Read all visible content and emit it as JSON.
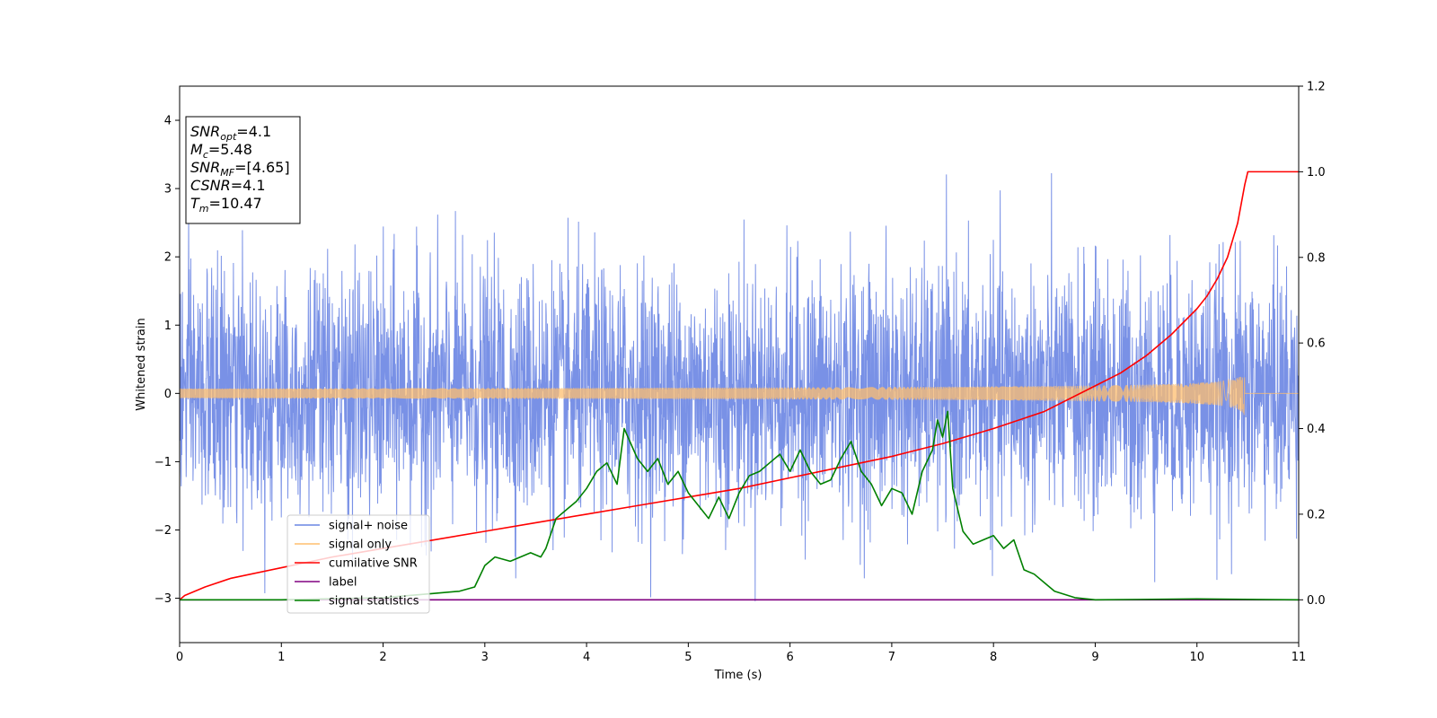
{
  "chart_data": {
    "type": "line",
    "xlabel": "Time (s)",
    "ylabel": "Whitened strain",
    "xlim": [
      0,
      11
    ],
    "ylim_left": [
      -3.65,
      4.5
    ],
    "ylim_right": [
      -0.1,
      1.2
    ],
    "x_ticks": [
      0,
      1,
      2,
      3,
      4,
      5,
      6,
      7,
      8,
      9,
      10,
      11
    ],
    "x_tick_labels": [
      "0",
      "1",
      "2",
      "3",
      "4",
      "5",
      "6",
      "7",
      "8",
      "9",
      "10",
      "11"
    ],
    "y_left_ticks": [
      -3,
      -2,
      -1,
      0,
      1,
      2,
      3,
      4
    ],
    "y_left_tick_labels": [
      "−3",
      "−2",
      "−1",
      "0",
      "1",
      "2",
      "3",
      "4"
    ],
    "y_right_ticks": [
      0.0,
      0.2,
      0.4,
      0.6,
      0.8,
      1.0,
      1.2
    ],
    "y_right_tick_labels": [
      "0.0",
      "0.2",
      "0.4",
      "0.6",
      "0.8",
      "1.0",
      "1.2"
    ],
    "info_box": [
      {
        "base": "SNR",
        "sub": "opt",
        "value": "=4.1"
      },
      {
        "base": "M",
        "sub": "c",
        "value": "=5.48"
      },
      {
        "base": "SNR",
        "sub": "MF",
        "value": "=[4.65]"
      },
      {
        "base": "CSNR",
        "sub": "",
        "value": "=4.1"
      },
      {
        "base": "T",
        "sub": "m",
        "value": "=10.47"
      }
    ],
    "legend": {
      "placement": "lower-left",
      "entries": [
        "signal+ noise",
        "signal only",
        "cumilative SNR",
        "label",
        "signal statistics"
      ]
    },
    "series": [
      {
        "name": "signal+ noise",
        "axis": "left",
        "color": "#6a85e3",
        "kind": "noise",
        "description_values": {
          "mean": 0.0,
          "std": 0.9,
          "x_range": [
            0,
            11
          ]
        }
      },
      {
        "name": "signal only",
        "axis": "left",
        "color": "#ffbf6f",
        "kind": "chirp",
        "merger_time": 10.47,
        "peak_amplitude": 0.38
      },
      {
        "name": "cumilative SNR",
        "axis": "right",
        "color": "#ff0000",
        "x": [
          0.0,
          0.05,
          0.25,
          0.5,
          1.0,
          1.5,
          2.0,
          2.5,
          3.0,
          3.5,
          4.0,
          4.5,
          5.0,
          5.5,
          6.0,
          6.5,
          7.0,
          7.5,
          8.0,
          8.5,
          9.0,
          9.25,
          9.5,
          9.75,
          10.0,
          10.1,
          10.2,
          10.3,
          10.4,
          10.47,
          10.5,
          11.0
        ],
        "y": [
          0.0,
          0.01,
          0.03,
          0.05,
          0.075,
          0.1,
          0.12,
          0.14,
          0.16,
          0.18,
          0.2,
          0.22,
          0.24,
          0.26,
          0.285,
          0.31,
          0.335,
          0.365,
          0.4,
          0.44,
          0.5,
          0.53,
          0.57,
          0.62,
          0.68,
          0.71,
          0.75,
          0.8,
          0.88,
          0.97,
          1.0,
          1.0
        ]
      },
      {
        "name": "label",
        "axis": "right",
        "color": "#800080",
        "x": [
          0,
          11
        ],
        "y": [
          0.0,
          0.0
        ]
      },
      {
        "name": "signal statistics",
        "axis": "right",
        "color": "#008000",
        "x": [
          0.0,
          1.0,
          2.0,
          2.5,
          2.75,
          2.9,
          3.0,
          3.1,
          3.25,
          3.35,
          3.45,
          3.55,
          3.6,
          3.7,
          3.8,
          3.9,
          4.0,
          4.1,
          4.2,
          4.3,
          4.37,
          4.5,
          4.6,
          4.7,
          4.8,
          4.9,
          5.0,
          5.1,
          5.2,
          5.3,
          5.4,
          5.5,
          5.6,
          5.7,
          5.8,
          5.9,
          6.0,
          6.1,
          6.2,
          6.3,
          6.4,
          6.5,
          6.6,
          6.7,
          6.8,
          6.9,
          7.0,
          7.1,
          7.2,
          7.3,
          7.4,
          7.45,
          7.5,
          7.55,
          7.6,
          7.7,
          7.8,
          7.9,
          8.0,
          8.1,
          8.2,
          8.3,
          8.4,
          8.5,
          8.6,
          8.8,
          9.0,
          10.0,
          11.0
        ],
        "y": [
          0.0,
          0.0,
          0.005,
          0.015,
          0.02,
          0.03,
          0.08,
          0.1,
          0.09,
          0.1,
          0.11,
          0.1,
          0.12,
          0.19,
          0.21,
          0.23,
          0.26,
          0.3,
          0.32,
          0.27,
          0.4,
          0.33,
          0.3,
          0.33,
          0.27,
          0.3,
          0.25,
          0.22,
          0.19,
          0.24,
          0.19,
          0.25,
          0.29,
          0.3,
          0.32,
          0.34,
          0.3,
          0.35,
          0.3,
          0.27,
          0.28,
          0.33,
          0.37,
          0.3,
          0.27,
          0.22,
          0.26,
          0.25,
          0.2,
          0.3,
          0.35,
          0.42,
          0.38,
          0.44,
          0.26,
          0.16,
          0.13,
          0.14,
          0.15,
          0.12,
          0.14,
          0.07,
          0.06,
          0.04,
          0.02,
          0.005,
          0.0,
          0.002,
          0.0
        ]
      }
    ]
  }
}
